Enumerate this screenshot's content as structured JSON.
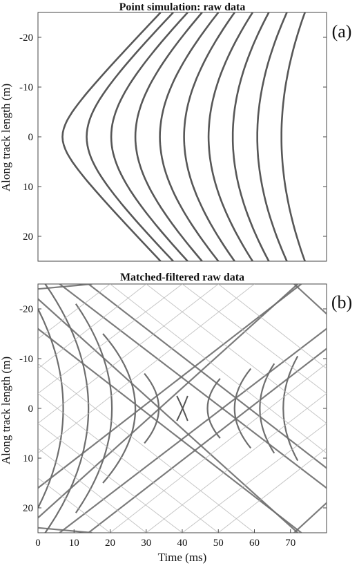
{
  "chart_data": [
    {
      "type": "line",
      "panel_label": "(a)",
      "title": "Point simulation: raw data",
      "xlabel": "",
      "ylabel": "Along track length (m)",
      "xlim": [
        0,
        80
      ],
      "ylim": [
        -25,
        25
      ],
      "y_reversed": true,
      "x_ticks": [],
      "y_ticks": [
        -20,
        -10,
        0,
        10,
        20
      ],
      "grid": false,
      "series": [
        {
          "style": "hyperbola",
          "values": [
            {
              "x": 6.8,
              "y": 0
            },
            {
              "x": 34.0,
              "y": -25
            },
            {
              "x": 34.0,
              "y": 25
            }
          ]
        },
        {
          "style": "hyperbola",
          "values": [
            {
              "x": 13.5,
              "y": 0
            },
            {
              "x": 37.5,
              "y": -25
            },
            {
              "x": 37.5,
              "y": 25
            }
          ]
        },
        {
          "style": "hyperbola",
          "values": [
            {
              "x": 20.3,
              "y": 0
            },
            {
              "x": 41.5,
              "y": -25
            },
            {
              "x": 41.5,
              "y": 25
            }
          ]
        },
        {
          "style": "hyperbola",
          "values": [
            {
              "x": 27.0,
              "y": 0
            },
            {
              "x": 45.5,
              "y": -25
            },
            {
              "x": 45.5,
              "y": 25
            }
          ]
        },
        {
          "style": "hyperbola",
          "values": [
            {
              "x": 33.8,
              "y": 0
            },
            {
              "x": 50.0,
              "y": -25
            },
            {
              "x": 50.0,
              "y": 25
            }
          ]
        },
        {
          "style": "hyperbola",
          "values": [
            {
              "x": 40.5,
              "y": 0
            },
            {
              "x": 54.5,
              "y": -25
            },
            {
              "x": 54.5,
              "y": 25
            }
          ]
        },
        {
          "style": "hyperbola",
          "values": [
            {
              "x": 47.3,
              "y": 0
            },
            {
              "x": 59.5,
              "y": -25
            },
            {
              "x": 59.5,
              "y": 25
            }
          ]
        },
        {
          "style": "hyperbola",
          "values": [
            {
              "x": 54.0,
              "y": 0
            },
            {
              "x": 64.0,
              "y": -25
            },
            {
              "x": 64.0,
              "y": 25
            }
          ]
        },
        {
          "style": "hyperbola",
          "values": [
            {
              "x": 60.8,
              "y": 0
            },
            {
              "x": 69.0,
              "y": -25
            },
            {
              "x": 69.0,
              "y": 25
            }
          ]
        },
        {
          "style": "hyperbola",
          "values": [
            {
              "x": 67.5,
              "y": 0
            },
            {
              "x": 74.0,
              "y": -25
            },
            {
              "x": 74.0,
              "y": 25
            }
          ]
        }
      ]
    },
    {
      "type": "line",
      "panel_label": "(b)",
      "title": "Matched-filtered raw data",
      "xlabel": "Time (ms)",
      "ylabel": "Along track length (m)",
      "xlim": [
        0,
        80
      ],
      "ylim": [
        -25,
        25
      ],
      "y_reversed": true,
      "x_ticks": [
        0,
        10,
        20,
        30,
        40,
        50,
        60,
        70
      ],
      "y_ticks": [
        -20,
        -10,
        0,
        10,
        20
      ],
      "grid": false,
      "series": [
        {
          "style": "arc",
          "values": [
            {
              "x": 7.0,
              "y": 0
            },
            {
              "x": 0,
              "y": -20
            },
            {
              "x": 0,
              "y": 20
            }
          ]
        },
        {
          "style": "arc",
          "values": [
            {
              "x": 14.0,
              "y": 0
            },
            {
              "x": 2.0,
              "y": -25
            },
            {
              "x": 2.0,
              "y": 25
            }
          ]
        },
        {
          "style": "arc",
          "values": [
            {
              "x": 20.5,
              "y": 0
            },
            {
              "x": 10.5,
              "y": -21
            },
            {
              "x": 10.5,
              "y": 21
            }
          ]
        },
        {
          "style": "arc",
          "values": [
            {
              "x": 27.0,
              "y": 0
            },
            {
              "x": 18.0,
              "y": -15
            },
            {
              "x": 18.0,
              "y": 15
            }
          ]
        },
        {
          "style": "arc",
          "values": [
            {
              "x": 33.5,
              "y": 0
            },
            {
              "x": 29.5,
              "y": -7
            },
            {
              "x": 29.5,
              "y": 7
            }
          ]
        },
        {
          "style": "cross",
          "values": [
            {
              "x": 40.2,
              "y": 0
            },
            {
              "x": 38.5,
              "y": -2.5
            },
            {
              "x": 38.5,
              "y": 2.5
            },
            {
              "x": 41.5,
              "y": -2.5
            },
            {
              "x": 41.5,
              "y": 2.5
            }
          ]
        },
        {
          "style": "arc",
          "values": [
            {
              "x": 47.0,
              "y": 0
            },
            {
              "x": 50.5,
              "y": -6
            },
            {
              "x": 50.5,
              "y": 6
            }
          ]
        },
        {
          "style": "arc",
          "values": [
            {
              "x": 54.5,
              "y": 0
            },
            {
              "x": 59.0,
              "y": -8
            },
            {
              "x": 59.0,
              "y": 8
            }
          ]
        },
        {
          "style": "arc",
          "values": [
            {
              "x": 61.5,
              "y": 0
            },
            {
              "x": 65.5,
              "y": -9
            },
            {
              "x": 65.5,
              "y": 9
            }
          ]
        },
        {
          "style": "arc",
          "values": [
            {
              "x": 68.0,
              "y": 0
            },
            {
              "x": 72.0,
              "y": -10.5
            },
            {
              "x": 72.0,
              "y": 10.5
            }
          ]
        },
        {
          "style": "line",
          "values": [
            {
              "x": 0,
              "y": -16
            },
            {
              "x": 73,
              "y": 25
            }
          ]
        },
        {
          "style": "line",
          "values": [
            {
              "x": 0,
              "y": 16
            },
            {
              "x": 73,
              "y": -25
            }
          ]
        },
        {
          "style": "line",
          "values": [
            {
              "x": 0,
              "y": -22
            },
            {
              "x": 72,
              "y": 25
            }
          ]
        },
        {
          "style": "line",
          "values": [
            {
              "x": 0,
              "y": 22
            },
            {
              "x": 72,
              "y": -25
            }
          ]
        },
        {
          "style": "line",
          "values": [
            {
              "x": 0,
              "y": -24
            },
            {
              "x": 15,
              "y": -25
            }
          ]
        },
        {
          "style": "line",
          "values": [
            {
              "x": 0,
              "y": 24
            },
            {
              "x": 15,
              "y": 25
            }
          ]
        },
        {
          "style": "line",
          "values": [
            {
              "x": 6,
              "y": 25
            },
            {
              "x": 80,
              "y": -16
            }
          ]
        },
        {
          "style": "line",
          "values": [
            {
              "x": 6,
              "y": -25
            },
            {
              "x": 80,
              "y": 16
            }
          ]
        },
        {
          "style": "line",
          "values": [
            {
              "x": 14,
              "y": -25
            },
            {
              "x": 80,
              "y": 12
            }
          ]
        },
        {
          "style": "line",
          "values": [
            {
              "x": 14,
              "y": 25
            },
            {
              "x": 80,
              "y": -12
            }
          ]
        },
        {
          "style": "line",
          "values": [
            {
              "x": 71,
              "y": -25
            },
            {
              "x": 80,
              "y": -19
            }
          ]
        },
        {
          "style": "line",
          "values": [
            {
              "x": 71,
              "y": 25
            },
            {
              "x": 80,
              "y": 19
            }
          ]
        },
        {
          "style": "faint",
          "values": [
            {
              "x": 20,
              "y": -25
            },
            {
              "x": 80,
              "y": 9
            }
          ]
        },
        {
          "style": "faint",
          "values": [
            {
              "x": 20,
              "y": 25
            },
            {
              "x": 80,
              "y": -9
            }
          ]
        },
        {
          "style": "faint",
          "values": [
            {
              "x": 30,
              "y": -25
            },
            {
              "x": 80,
              "y": 3
            }
          ]
        },
        {
          "style": "faint",
          "values": [
            {
              "x": 30,
              "y": 25
            },
            {
              "x": 80,
              "y": -3
            }
          ]
        },
        {
          "style": "faint",
          "values": [
            {
              "x": 40,
              "y": -25
            },
            {
              "x": 80,
              "y": -3
            }
          ]
        },
        {
          "style": "faint",
          "values": [
            {
              "x": 40,
              "y": 25
            },
            {
              "x": 80,
              "y": 3
            }
          ]
        },
        {
          "style": "faint",
          "values": [
            {
              "x": 50,
              "y": -25
            },
            {
              "x": 80,
              "y": -8
            }
          ]
        },
        {
          "style": "faint",
          "values": [
            {
              "x": 50,
              "y": 25
            },
            {
              "x": 80,
              "y": 8
            }
          ]
        },
        {
          "style": "faint",
          "values": [
            {
              "x": 60,
              "y": 25
            },
            {
              "x": 0,
              "y": -9
            }
          ]
        },
        {
          "style": "faint",
          "values": [
            {
              "x": 60,
              "y": -25
            },
            {
              "x": 0,
              "y": 9
            }
          ]
        },
        {
          "style": "faint",
          "values": [
            {
              "x": 50,
              "y": 25
            },
            {
              "x": 0,
              "y": -3
            }
          ]
        },
        {
          "style": "faint",
          "values": [
            {
              "x": 50,
              "y": -25
            },
            {
              "x": 0,
              "y": 3
            }
          ]
        },
        {
          "style": "faint",
          "values": [
            {
              "x": 40,
              "y": 25
            },
            {
              "x": 0,
              "y": 3
            }
          ]
        },
        {
          "style": "faint",
          "values": [
            {
              "x": 40,
              "y": -25
            },
            {
              "x": 0,
              "y": -3
            }
          ]
        },
        {
          "style": "faint",
          "values": [
            {
              "x": 30,
              "y": 25
            },
            {
              "x": 0,
              "y": 8
            }
          ]
        },
        {
          "style": "faint",
          "values": [
            {
              "x": 30,
              "y": -25
            },
            {
              "x": 0,
              "y": -8
            }
          ]
        },
        {
          "style": "faint",
          "values": [
            {
              "x": 20,
              "y": 25
            },
            {
              "x": 0,
              "y": 14
            }
          ]
        },
        {
          "style": "faint",
          "values": [
            {
              "x": 20,
              "y": -25
            },
            {
              "x": 0,
              "y": -14
            }
          ]
        }
      ]
    }
  ]
}
